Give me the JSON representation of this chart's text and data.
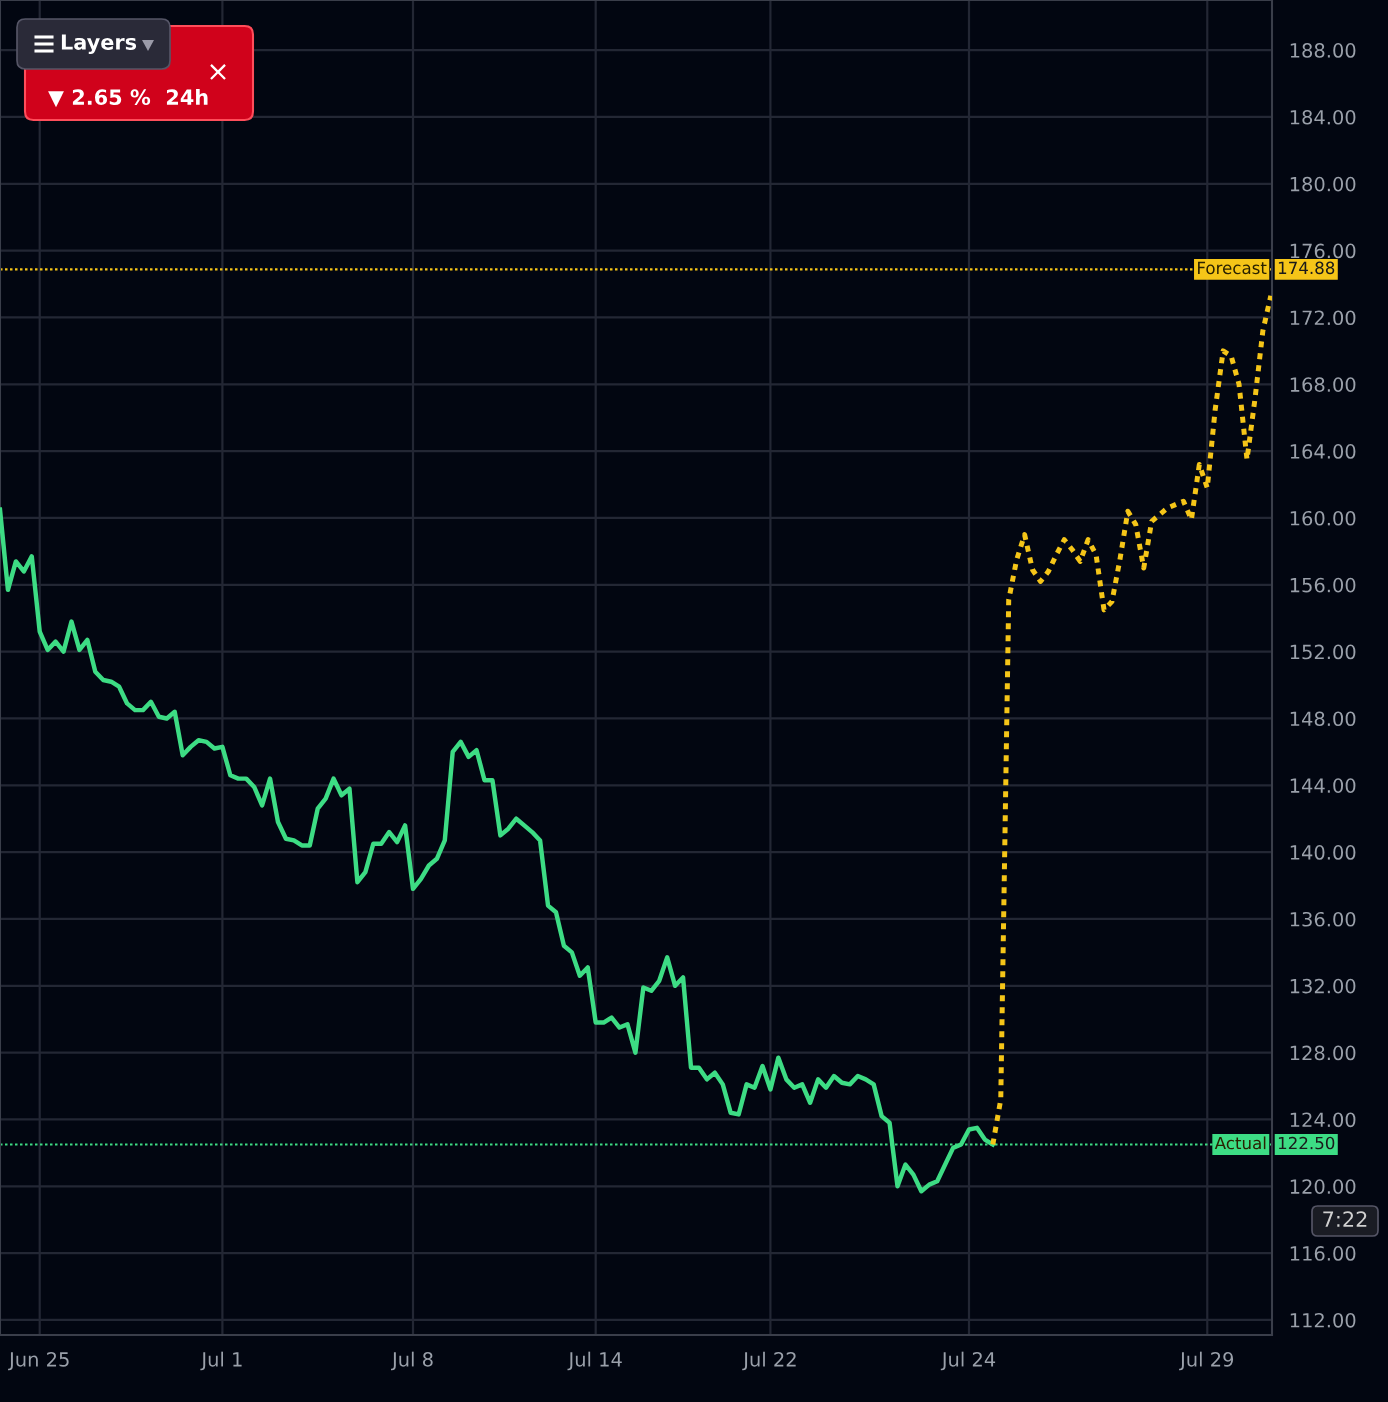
{
  "chart_data": {
    "type": "line",
    "categories": [
      null,
      null,
      null,
      null,
      null,
      "Jun 25",
      null,
      null,
      null,
      null,
      null,
      null,
      null,
      null,
      null,
      null,
      null,
      null,
      null,
      null,
      null,
      null,
      null,
      null,
      null,
      null,
      null,
      null,
      "Jul 1",
      null,
      null,
      null,
      null,
      null,
      null,
      null,
      null,
      null,
      null,
      null,
      null,
      null,
      null,
      null,
      null,
      null,
      null,
      null,
      null,
      null,
      null,
      null,
      "Jul 8",
      null,
      null,
      null,
      null,
      null,
      null,
      null,
      null,
      null,
      null,
      null,
      null,
      null,
      null,
      null,
      null,
      null,
      null,
      null,
      null,
      null,
      null,
      "Jul 14",
      null,
      null,
      null,
      null,
      null,
      null,
      null,
      null,
      null,
      null,
      null,
      null,
      null,
      null,
      null,
      null,
      null,
      null,
      null,
      null,
      null,
      "Jul 22",
      null,
      null,
      null,
      null,
      null,
      null,
      null,
      null,
      null,
      null,
      null,
      null,
      null,
      null,
      null,
      null,
      null,
      null,
      null,
      null,
      null,
      null,
      null,
      null,
      "Jul 24",
      null,
      null,
      null,
      null,
      null,
      null,
      null,
      null,
      null,
      null,
      null,
      null,
      null,
      null,
      null,
      null,
      null,
      null,
      null,
      null,
      null,
      null,
      null,
      null,
      null,
      null,
      null,
      null,
      null,
      "Jul 29",
      null,
      null,
      null,
      null,
      null,
      null,
      null,
      null
    ],
    "ylim": [
      111.1,
      191.0
    ],
    "yticks": [
      {
        "value": 112,
        "label": "112.00"
      },
      {
        "value": 116,
        "label": "116.00"
      },
      {
        "value": 120,
        "label": "120.00"
      },
      {
        "value": 124,
        "label": "124.00"
      },
      {
        "value": 128,
        "label": "128.00"
      },
      {
        "value": 132,
        "label": "132.00"
      },
      {
        "value": 136,
        "label": "136.00"
      },
      {
        "value": 140,
        "label": "140.00"
      },
      {
        "value": 144,
        "label": "144.00"
      },
      {
        "value": 148,
        "label": "148.00"
      },
      {
        "value": 152,
        "label": "152.00"
      },
      {
        "value": 156,
        "label": "156.00"
      },
      {
        "value": 160,
        "label": "160.00"
      },
      {
        "value": 164,
        "label": "164.00"
      },
      {
        "value": 168,
        "label": "168.00"
      },
      {
        "value": 172,
        "label": "172.00"
      },
      {
        "value": 176,
        "label": "176.00"
      },
      {
        "value": 180,
        "label": "180.00"
      },
      {
        "value": 184,
        "label": "184.00"
      },
      {
        "value": 188,
        "label": "188.00"
      }
    ],
    "grid": true,
    "series": [
      {
        "color": "#3ddc84",
        "line_style": "solid",
        "values": [
          160.5,
          155.7,
          157.4,
          156.8,
          157.7,
          153.2,
          152.1,
          152.6,
          152.0,
          153.8,
          152.1,
          152.7,
          150.8,
          150.3,
          150.2,
          149.9,
          148.9,
          148.5,
          148.5,
          149.0,
          148.1,
          148.0,
          148.4,
          145.8,
          146.3,
          146.7,
          146.6,
          146.2,
          146.3,
          144.6,
          144.4,
          144.4,
          143.9,
          142.8,
          144.4,
          141.8,
          140.8,
          140.7,
          140.4,
          140.4,
          142.6,
          143.2,
          144.4,
          143.4,
          143.8,
          138.2,
          138.8,
          140.5,
          140.5,
          141.2,
          140.6,
          141.6,
          137.8,
          138.4,
          139.2,
          139.6,
          140.7,
          146.0,
          146.6,
          145.7,
          146.1,
          144.3,
          144.3,
          141.0,
          141.4,
          142.0,
          141.6,
          141.2,
          140.7,
          136.8,
          136.4,
          134.4,
          134.0,
          132.6,
          133.1,
          129.8,
          129.8,
          130.1,
          129.5,
          129.7,
          128.0,
          131.9,
          131.7,
          132.3,
          133.7,
          132.0,
          132.5,
          127.1,
          127.1,
          126.4,
          126.8,
          126.1,
          124.4,
          124.3,
          126.1,
          125.9,
          127.2,
          125.8,
          127.7,
          126.4,
          125.9,
          126.1,
          125.0,
          126.4,
          125.9,
          126.6,
          126.2,
          126.1,
          126.6,
          126.4,
          126.1,
          124.2,
          123.8,
          120.0,
          121.3,
          120.7,
          119.7,
          120.1,
          120.3,
          121.3,
          122.3,
          122.5,
          123.4,
          123.5,
          122.8,
          122.5,
          null,
          null,
          null,
          null,
          null,
          null,
          null,
          null,
          null,
          null,
          null,
          null,
          null,
          null,
          null,
          null,
          null,
          null,
          null,
          null,
          null,
          null,
          null,
          null,
          null,
          null,
          null,
          null,
          null,
          null,
          null,
          null,
          null,
          null,
          null
        ]
      },
      {
        "color": "#f5c518",
        "line_style": "dotted",
        "values": [
          null,
          null,
          null,
          null,
          null,
          null,
          null,
          null,
          null,
          null,
          null,
          null,
          null,
          null,
          null,
          null,
          null,
          null,
          null,
          null,
          null,
          null,
          null,
          null,
          null,
          null,
          null,
          null,
          null,
          null,
          null,
          null,
          null,
          null,
          null,
          null,
          null,
          null,
          null,
          null,
          null,
          null,
          null,
          null,
          null,
          null,
          null,
          null,
          null,
          null,
          null,
          null,
          null,
          null,
          null,
          null,
          null,
          null,
          null,
          null,
          null,
          null,
          null,
          null,
          null,
          null,
          null,
          null,
          null,
          null,
          null,
          null,
          null,
          null,
          null,
          null,
          null,
          null,
          null,
          null,
          null,
          null,
          null,
          null,
          null,
          null,
          null,
          null,
          null,
          null,
          null,
          null,
          null,
          null,
          null,
          null,
          null,
          null,
          null,
          null,
          null,
          null,
          null,
          null,
          null,
          null,
          null,
          null,
          null,
          null,
          null,
          null,
          null,
          null,
          null,
          null,
          null,
          null,
          null,
          null,
          null,
          null,
          null,
          null,
          null,
          122.5,
          125.2,
          155.1,
          157.5,
          159.0,
          156.9,
          156.2,
          156.8,
          157.8,
          158.7,
          158.1,
          157.4,
          158.7,
          157.8,
          154.5,
          155.0,
          157.5,
          160.4,
          159.6,
          157.0,
          159.8,
          160.2,
          160.6,
          160.8,
          161.0,
          159.9,
          163.2,
          161.8,
          166.5,
          170.0,
          169.7,
          168.0,
          163.5,
          167.1,
          171.2,
          173.3
        ]
      }
    ],
    "ref_lines": [
      {
        "axis": "y",
        "value": 174.88,
        "label": "Forecast",
        "color": "#f5c518",
        "line_style": "dotted"
      },
      {
        "axis": "y",
        "value": 122.5,
        "label": "Actual",
        "color": "#3ddc84",
        "line_style": "dotted"
      }
    ],
    "annotations": [
      "Layers",
      "▼ 2.65 %  24h",
      "×",
      "7:22",
      "174.88",
      "122.50"
    ]
  }
}
